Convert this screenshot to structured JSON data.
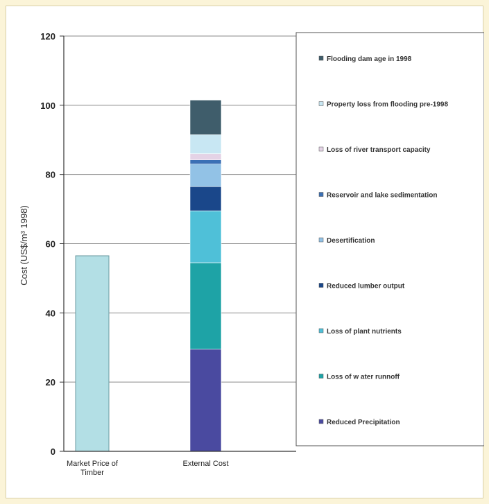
{
  "chart_data": {
    "type": "bar",
    "stacked": true,
    "ylabel": "Cost (US$/m³ 1998)",
    "xlabel": "",
    "title": "",
    "ylim": [
      0,
      120
    ],
    "yticks": [
      0,
      20,
      40,
      60,
      80,
      100,
      120
    ],
    "grid": true,
    "legend_position": "right",
    "categories": [
      {
        "lines": [
          "Market Price of",
          "Timber"
        ]
      },
      {
        "lines": [
          "External Cost"
        ]
      }
    ],
    "market_price": {
      "value": 56.5,
      "color": "#b3dfe5"
    },
    "series": [
      {
        "name": "Reduced Precipitation",
        "value": 29.5,
        "color": "#4a4aa0"
      },
      {
        "name": "Loss of w ater runnoff",
        "value": 25.0,
        "color": "#1ea3a6"
      },
      {
        "name": "Loss of plant nutrients",
        "value": 15.0,
        "color": "#4fc0d8"
      },
      {
        "name": "Reduced lumber output",
        "value": 7.0,
        "color": "#1a478a"
      },
      {
        "name": "Desertification",
        "value": 6.5,
        "color": "#92c2e6"
      },
      {
        "name": "Reservoir and lake sedimentation",
        "value": 1.2,
        "color": "#3b70b5"
      },
      {
        "name": "Loss of river transport capacity",
        "value": 1.8,
        "color": "#e4d3e6"
      },
      {
        "name": "Property loss from flooding pre-1998",
        "value": 5.5,
        "color": "#c8e7f3"
      },
      {
        "name": "Flooding dam age in 1998",
        "value": 10.0,
        "color": "#3f5d6b"
      }
    ]
  }
}
